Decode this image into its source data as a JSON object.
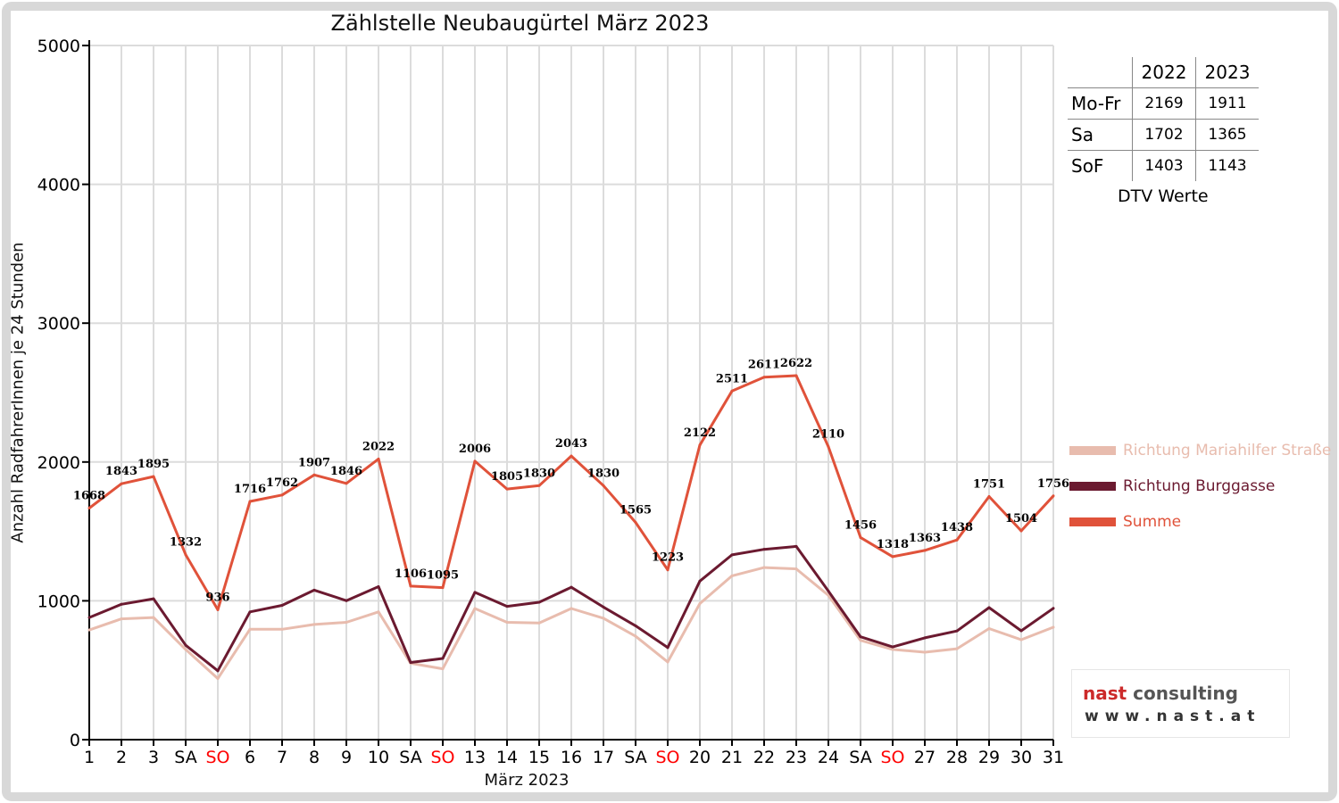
{
  "chart_data": {
    "type": "line",
    "title": "Zählstelle Neubaugürtel März 2023",
    "xlabel": "März 2023",
    "ylabel": "Anzahl RadfahrerInnen je 24 Stunden",
    "ylim": [
      0,
      5000
    ],
    "yticks": [
      "0",
      "1000",
      "2000",
      "3000",
      "4000",
      "5000"
    ],
    "x": [
      "1",
      "2",
      "3",
      "SA",
      "SO",
      "6",
      "7",
      "8",
      "9",
      "10",
      "SA",
      "SO",
      "13",
      "14",
      "15",
      "16",
      "17",
      "SA",
      "SO",
      "20",
      "21",
      "22",
      "23",
      "24",
      "SA",
      "SO",
      "27",
      "28",
      "29",
      "30",
      "31"
    ],
    "grid": true,
    "sunday_color": "#ff0000",
    "series": [
      {
        "name": "Richtung Mariahilfer Straße",
        "color": "#e8bcae",
        "values": [
          790,
          870,
          880,
          650,
          440,
          795,
          795,
          830,
          845,
          920,
          550,
          510,
          945,
          845,
          840,
          945,
          875,
          745,
          560,
          980,
          1180,
          1240,
          1230,
          1040,
          715,
          650,
          630,
          655,
          800,
          720,
          810
        ]
      },
      {
        "name": "Richtung Burggasse",
        "color": "#6b1a30",
        "values": [
          880,
          975,
          1015,
          680,
          496,
          920,
          967,
          1077,
          1001,
          1102,
          556,
          585,
          1061,
          960,
          990,
          1098,
          955,
          820,
          663,
          1142,
          1331,
          1371,
          1392,
          1070,
          741,
          668,
          733,
          783,
          951,
          784,
          946
        ]
      },
      {
        "name": "Summe",
        "color": "#e0523a",
        "values": [
          1668,
          1843,
          1895,
          1332,
          936,
          1716,
          1762,
          1907,
          1846,
          2022,
          1106,
          1095,
          2006,
          1805,
          1830,
          2043,
          1830,
          1565,
          1223,
          2122,
          2511,
          2611,
          2622,
          2110,
          1456,
          1318,
          1363,
          1438,
          1751,
          1504,
          1756
        ]
      }
    ],
    "data_labels_series": "Summe",
    "legend_position": "right"
  },
  "dtv_table": {
    "headers": [
      "2022",
      "2023"
    ],
    "rows": [
      {
        "label": "Mo-Fr",
        "v2022": "2169",
        "v2023": "1911"
      },
      {
        "label": "Sa",
        "v2022": "1702",
        "v2023": "1365"
      },
      {
        "label": "SoF",
        "v2022": "1403",
        "v2023": "1143"
      }
    ],
    "caption": "DTV Werte"
  },
  "logo": {
    "brand": "nast",
    "rest": " consulting",
    "url": "www.nast.at"
  }
}
